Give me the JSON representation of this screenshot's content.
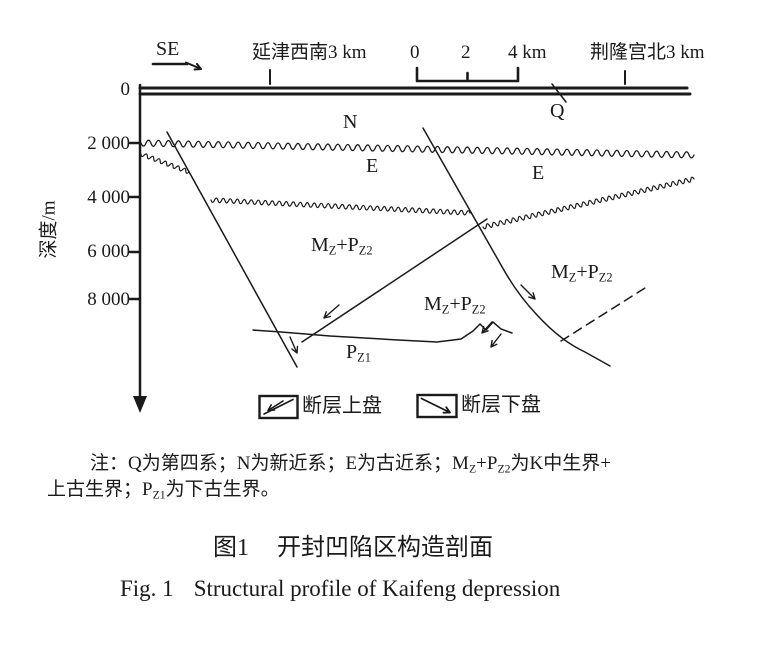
{
  "figure": {
    "direction_label": "SE",
    "station_left": "延津西南3 km",
    "station_right": "荆隆宫北3 km",
    "scale": {
      "t0": "0",
      "t2": "2",
      "t4": "4 km"
    },
    "axis": {
      "title": "深度/m",
      "ticks": [
        "0",
        "2 000",
        "4 000",
        "6 000",
        "8 000"
      ]
    },
    "strata": {
      "q": "Q",
      "n": "N",
      "e": "E",
      "mz_pz2": "M~Z~+P~Z2~",
      "pz1": "P~Z1~"
    }
  },
  "legend": {
    "hanging_wall": "断层上盘",
    "foot_wall": "断层下盘"
  },
  "note": {
    "line1": "注：Q为第四系；N为新近系；E为古近系；M~Z~+P~Z2~为K中生界+",
    "line2": "上古生界；P~Z1~为下古生界。"
  },
  "caption": {
    "zh_num": "图1",
    "zh_title": "开封凹陷区构造剖面",
    "en_num": "Fig. 1",
    "en_title": "Structural profile of Kaifeng depression"
  }
}
